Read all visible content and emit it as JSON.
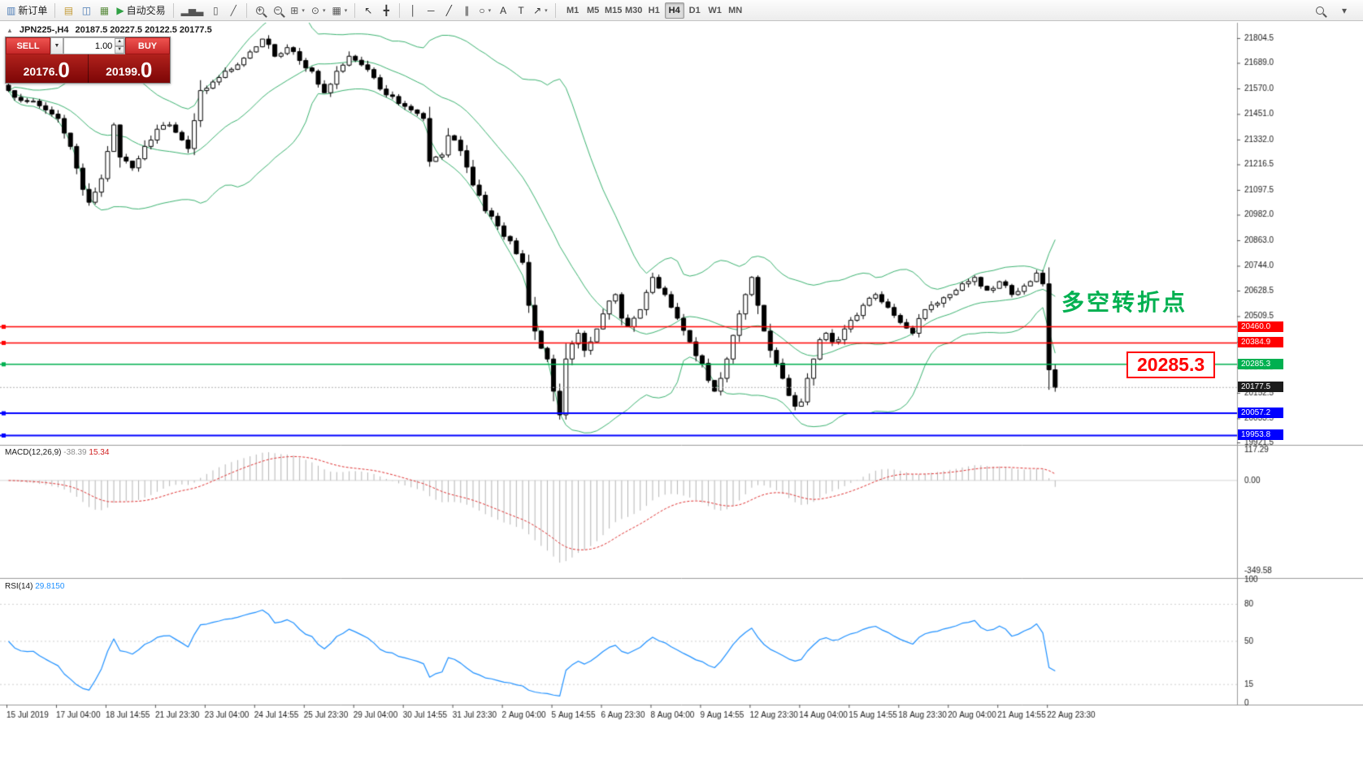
{
  "toolbar": {
    "items": [
      {
        "kind": "labeled",
        "name": "new-order-button",
        "glyph": "▥",
        "glyph_color": "#4a7ab5",
        "label": "新订单"
      },
      {
        "kind": "sep"
      },
      {
        "kind": "icon",
        "name": "market-watch-icon",
        "glyph": "▤",
        "glyph_color": "#c39a35"
      },
      {
        "kind": "icon",
        "name": "data-window-icon",
        "glyph": "◫",
        "glyph_color": "#4a7ab5"
      },
      {
        "kind": "icon",
        "name": "navigator-icon",
        "glyph": "▦",
        "glyph_color": "#5b8c3e"
      },
      {
        "kind": "labeled",
        "name": "auto-trading-button",
        "glyph": "▶",
        "glyph_color": "#2fa043",
        "label": "自动交易"
      },
      {
        "kind": "sep"
      },
      {
        "kind": "icon",
        "name": "bar-chart-icon",
        "glyph": "▂▅▃",
        "glyph_color": "#555555"
      },
      {
        "kind": "icon",
        "name": "candlestick-chart-icon",
        "glyph": "▯",
        "glyph_color": "#555555"
      },
      {
        "kind": "icon",
        "name": "line-chart-icon",
        "glyph": "╱",
        "glyph_color": "#555555"
      },
      {
        "kind": "sep"
      },
      {
        "kind": "mag",
        "name": "zoom-in-button",
        "sign": "+"
      },
      {
        "kind": "mag",
        "name": "zoom-out-button",
        "sign": "−"
      },
      {
        "kind": "icon",
        "name": "tile-windows-icon",
        "glyph": "⊞",
        "glyph_color": "#555555",
        "dd": true
      },
      {
        "kind": "icon",
        "name": "period-clock-icon",
        "glyph": "⊙",
        "glyph_color": "#555555",
        "dd": true
      },
      {
        "kind": "icon",
        "name": "template-icon",
        "glyph": "▦",
        "glyph_color": "#555555",
        "dd": true
      },
      {
        "kind": "sep"
      },
      {
        "kind": "icon",
        "name": "cursor-icon",
        "glyph": "↖",
        "glyph_color": "#333333"
      },
      {
        "kind": "icon",
        "name": "crosshair-icon",
        "glyph": "╋",
        "glyph_color": "#333333"
      },
      {
        "kind": "sep"
      },
      {
        "kind": "icon",
        "name": "vertical-line-icon",
        "glyph": "│",
        "glyph_color": "#333333"
      },
      {
        "kind": "icon",
        "name": "horizontal-line-icon",
        "glyph": "─",
        "glyph_color": "#333333"
      },
      {
        "kind": "icon",
        "name": "trendline-icon",
        "glyph": "╱",
        "glyph_color": "#333333"
      },
      {
        "kind": "icon",
        "name": "equidistant-channel-icon",
        "glyph": "∥",
        "glyph_color": "#333333"
      },
      {
        "kind": "icon",
        "name": "shapes-icon",
        "glyph": "○",
        "glyph_color": "#333333",
        "dd": true
      },
      {
        "kind": "icon",
        "name": "text-icon",
        "glyph": "A",
        "glyph_color": "#333333"
      },
      {
        "kind": "icon",
        "name": "text-label-icon",
        "glyph": "T",
        "glyph_color": "#333333"
      },
      {
        "kind": "icon",
        "name": "arrows-icon",
        "glyph": "↗",
        "glyph_color": "#333333",
        "dd": true
      },
      {
        "kind": "sep"
      }
    ],
    "timeframes": [
      "M1",
      "M5",
      "M15",
      "M30",
      "H1",
      "H4",
      "D1",
      "W1",
      "MN"
    ],
    "active_timeframe": "H4"
  },
  "chart_header": {
    "symbol_timeframe": "JPN225-,H4",
    "ohlc": "20187.5 20227.5 20122.5 20177.5"
  },
  "trade_panel": {
    "sell_label": "SELL",
    "buy_label": "BUY",
    "volume": "1.00",
    "sell_price_main": "20176.",
    "sell_price_big": "0",
    "buy_price_main": "20199.",
    "buy_price_big": "0"
  },
  "annotations": {
    "turning_point": "多空转折点",
    "price_box": "20285.3"
  },
  "price_axis": {
    "ticks": [
      21804.5,
      21689.0,
      21570.0,
      21451.0,
      21332.0,
      21216.5,
      21097.5,
      20982.0,
      20863.0,
      20744.0,
      20628.5,
      20509.5,
      20390.5,
      20271.5,
      20152.5,
      20033.5,
      19921.5
    ],
    "levels": [
      {
        "value": 20460.0,
        "label": "20460.0",
        "color": "#ff0000"
      },
      {
        "value": 20384.9,
        "label": "20384.9",
        "color": "#ff0000"
      },
      {
        "value": 20285.3,
        "label": "20285.3",
        "color": "#00b050"
      },
      {
        "value": 20057.2,
        "label": "20057.2",
        "color": "#0000ff"
      },
      {
        "value": 19953.8,
        "label": "19953.8",
        "color": "#0000ff"
      }
    ],
    "current": {
      "value": 20177.5,
      "label": "20177.5",
      "color": "#1c1c1c"
    }
  },
  "macd_panel": {
    "title": "MACD(12,26,9)",
    "hist_value": "-38.39",
    "signal_value": "15.34",
    "scale": [
      "117.29",
      "0.00",
      "-349.58"
    ],
    "hist_color": "#b5b5b5",
    "signal_color": "#e03232"
  },
  "rsi_panel": {
    "title": "RSI(14)",
    "value": "29.8150",
    "scale": [
      "100",
      "80",
      "50",
      "15",
      "0"
    ],
    "levels": [
      80,
      50,
      15
    ],
    "line_color": "#1e90ff"
  },
  "time_axis": {
    "labels": [
      "15 Jul 2019",
      "17 Jul 04:00",
      "18 Jul 14:55",
      "21 Jul 23:30",
      "23 Jul 04:00",
      "24 Jul 14:55",
      "25 Jul 23:30",
      "29 Jul 04:00",
      "30 Jul 14:55",
      "31 Jul 23:30",
      "2 Aug 04:00",
      "5 Aug 14:55",
      "6 Aug 23:30",
      "8 Aug 04:00",
      "9 Aug 14:55",
      "12 Aug 23:30",
      "14 Aug 04:00",
      "15 Aug 14:55",
      "18 Aug 23:30",
      "20 Aug 04:00",
      "21 Aug 14:55",
      "22 Aug 23:30"
    ]
  },
  "chart_data": {
    "type": "candlestick",
    "symbol": "JPN225-",
    "timeframe": "H4",
    "bars": 170,
    "ylim": [
      19914,
      21876
    ],
    "ohlc_display": {
      "open": 20187.5,
      "high": 20227.5,
      "low": 20122.5,
      "close": 20177.5
    },
    "bollinger": {
      "period": 20,
      "deviation": 2,
      "color": "#3cb371"
    },
    "macd": {
      "fast": 12,
      "slow": 26,
      "signal": 9,
      "display": [
        -38.39,
        15.34
      ],
      "scale": [
        117.29,
        0.0,
        -349.58
      ]
    },
    "rsi": {
      "period": 14,
      "value": 29.815
    },
    "price_anchors": [
      [
        0,
        21560
      ],
      [
        3,
        21510
      ],
      [
        6,
        21470
      ],
      [
        8,
        21430
      ],
      [
        10,
        21300
      ],
      [
        12,
        21100
      ],
      [
        13,
        21040
      ],
      [
        15,
        21150
      ],
      [
        17,
        21400
      ],
      [
        18,
        21250
      ],
      [
        20,
        21200
      ],
      [
        22,
        21300
      ],
      [
        24,
        21380
      ],
      [
        26,
        21400
      ],
      [
        28,
        21330
      ],
      [
        29,
        21290
      ],
      [
        30,
        21420
      ],
      [
        31,
        21560
      ],
      [
        33,
        21600
      ],
      [
        35,
        21650
      ],
      [
        37,
        21680
      ],
      [
        39,
        21740
      ],
      [
        41,
        21800
      ],
      [
        43,
        21720
      ],
      [
        45,
        21760
      ],
      [
        47,
        21700
      ],
      [
        49,
        21650
      ],
      [
        51,
        21550
      ],
      [
        53,
        21650
      ],
      [
        55,
        21720
      ],
      [
        57,
        21680
      ],
      [
        59,
        21620
      ],
      [
        61,
        21540
      ],
      [
        63,
        21500
      ],
      [
        65,
        21470
      ],
      [
        67,
        21430
      ],
      [
        68,
        21230
      ],
      [
        70,
        21260
      ],
      [
        71,
        21350
      ],
      [
        73,
        21280
      ],
      [
        75,
        21120
      ],
      [
        77,
        21000
      ],
      [
        79,
        20930
      ],
      [
        81,
        20860
      ],
      [
        83,
        20760
      ],
      [
        84,
        20560
      ],
      [
        85,
        20440
      ],
      [
        86,
        20360
      ],
      [
        87,
        20310
      ],
      [
        88,
        20160
      ],
      [
        89,
        20050
      ],
      [
        90,
        20310
      ],
      [
        91,
        20380
      ],
      [
        92,
        20430
      ],
      [
        93,
        20350
      ],
      [
        94,
        20390
      ],
      [
        95,
        20450
      ],
      [
        96,
        20520
      ],
      [
        97,
        20580
      ],
      [
        98,
        20610
      ],
      [
        99,
        20500
      ],
      [
        100,
        20460
      ],
      [
        101,
        20500
      ],
      [
        102,
        20540
      ],
      [
        103,
        20620
      ],
      [
        104,
        20690
      ],
      [
        105,
        20640
      ],
      [
        106,
        20610
      ],
      [
        108,
        20500
      ],
      [
        110,
        20390
      ],
      [
        112,
        20290
      ],
      [
        113,
        20210
      ],
      [
        114,
        20160
      ],
      [
        115,
        20220
      ],
      [
        116,
        20310
      ],
      [
        117,
        20420
      ],
      [
        118,
        20520
      ],
      [
        119,
        20610
      ],
      [
        120,
        20690
      ],
      [
        121,
        20560
      ],
      [
        122,
        20440
      ],
      [
        123,
        20350
      ],
      [
        124,
        20290
      ],
      [
        125,
        20220
      ],
      [
        126,
        20140
      ],
      [
        127,
        20090
      ],
      [
        128,
        20110
      ],
      [
        129,
        20220
      ],
      [
        130,
        20310
      ],
      [
        131,
        20400
      ],
      [
        132,
        20430
      ],
      [
        133,
        20390
      ],
      [
        134,
        20400
      ],
      [
        135,
        20450
      ],
      [
        136,
        20490
      ],
      [
        138,
        20560
      ],
      [
        140,
        20610
      ],
      [
        142,
        20550
      ],
      [
        144,
        20480
      ],
      [
        146,
        20430
      ],
      [
        148,
        20540
      ],
      [
        150,
        20570
      ],
      [
        152,
        20610
      ],
      [
        154,
        20660
      ],
      [
        156,
        20690
      ],
      [
        158,
        20630
      ],
      [
        160,
        20670
      ],
      [
        162,
        20610
      ],
      [
        164,
        20650
      ],
      [
        166,
        20710
      ],
      [
        167,
        20660
      ],
      [
        168,
        20260
      ],
      [
        169,
        20177.5
      ]
    ]
  }
}
